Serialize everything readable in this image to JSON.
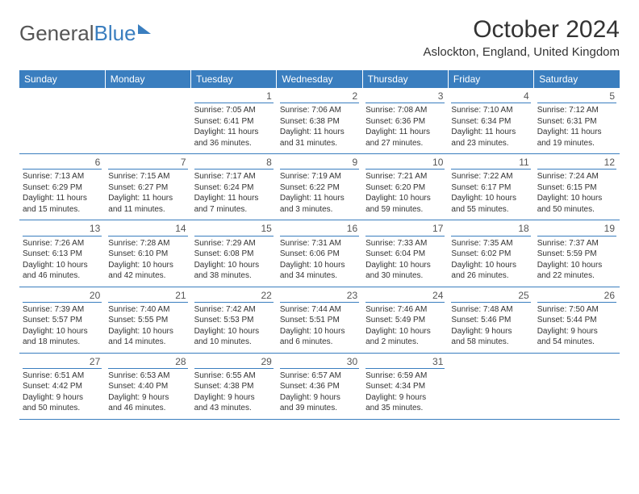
{
  "logo": {
    "part1": "General",
    "part2": "Blue"
  },
  "title": "October 2024",
  "location": "Aslockton, England, United Kingdom",
  "colors": {
    "header_bg": "#3a7ebf",
    "header_text": "#ffffff",
    "border": "#3a7ebf",
    "text": "#333333"
  },
  "day_headers": [
    "Sunday",
    "Monday",
    "Tuesday",
    "Wednesday",
    "Thursday",
    "Friday",
    "Saturday"
  ],
  "weeks": [
    [
      {
        "day": "",
        "lines": []
      },
      {
        "day": "",
        "lines": []
      },
      {
        "day": "1",
        "lines": [
          "Sunrise: 7:05 AM",
          "Sunset: 6:41 PM",
          "Daylight: 11 hours",
          "and 36 minutes."
        ]
      },
      {
        "day": "2",
        "lines": [
          "Sunrise: 7:06 AM",
          "Sunset: 6:38 PM",
          "Daylight: 11 hours",
          "and 31 minutes."
        ]
      },
      {
        "day": "3",
        "lines": [
          "Sunrise: 7:08 AM",
          "Sunset: 6:36 PM",
          "Daylight: 11 hours",
          "and 27 minutes."
        ]
      },
      {
        "day": "4",
        "lines": [
          "Sunrise: 7:10 AM",
          "Sunset: 6:34 PM",
          "Daylight: 11 hours",
          "and 23 minutes."
        ]
      },
      {
        "day": "5",
        "lines": [
          "Sunrise: 7:12 AM",
          "Sunset: 6:31 PM",
          "Daylight: 11 hours",
          "and 19 minutes."
        ]
      }
    ],
    [
      {
        "day": "6",
        "lines": [
          "Sunrise: 7:13 AM",
          "Sunset: 6:29 PM",
          "Daylight: 11 hours",
          "and 15 minutes."
        ]
      },
      {
        "day": "7",
        "lines": [
          "Sunrise: 7:15 AM",
          "Sunset: 6:27 PM",
          "Daylight: 11 hours",
          "and 11 minutes."
        ]
      },
      {
        "day": "8",
        "lines": [
          "Sunrise: 7:17 AM",
          "Sunset: 6:24 PM",
          "Daylight: 11 hours",
          "and 7 minutes."
        ]
      },
      {
        "day": "9",
        "lines": [
          "Sunrise: 7:19 AM",
          "Sunset: 6:22 PM",
          "Daylight: 11 hours",
          "and 3 minutes."
        ]
      },
      {
        "day": "10",
        "lines": [
          "Sunrise: 7:21 AM",
          "Sunset: 6:20 PM",
          "Daylight: 10 hours",
          "and 59 minutes."
        ]
      },
      {
        "day": "11",
        "lines": [
          "Sunrise: 7:22 AM",
          "Sunset: 6:17 PM",
          "Daylight: 10 hours",
          "and 55 minutes."
        ]
      },
      {
        "day": "12",
        "lines": [
          "Sunrise: 7:24 AM",
          "Sunset: 6:15 PM",
          "Daylight: 10 hours",
          "and 50 minutes."
        ]
      }
    ],
    [
      {
        "day": "13",
        "lines": [
          "Sunrise: 7:26 AM",
          "Sunset: 6:13 PM",
          "Daylight: 10 hours",
          "and 46 minutes."
        ]
      },
      {
        "day": "14",
        "lines": [
          "Sunrise: 7:28 AM",
          "Sunset: 6:10 PM",
          "Daylight: 10 hours",
          "and 42 minutes."
        ]
      },
      {
        "day": "15",
        "lines": [
          "Sunrise: 7:29 AM",
          "Sunset: 6:08 PM",
          "Daylight: 10 hours",
          "and 38 minutes."
        ]
      },
      {
        "day": "16",
        "lines": [
          "Sunrise: 7:31 AM",
          "Sunset: 6:06 PM",
          "Daylight: 10 hours",
          "and 34 minutes."
        ]
      },
      {
        "day": "17",
        "lines": [
          "Sunrise: 7:33 AM",
          "Sunset: 6:04 PM",
          "Daylight: 10 hours",
          "and 30 minutes."
        ]
      },
      {
        "day": "18",
        "lines": [
          "Sunrise: 7:35 AM",
          "Sunset: 6:02 PM",
          "Daylight: 10 hours",
          "and 26 minutes."
        ]
      },
      {
        "day": "19",
        "lines": [
          "Sunrise: 7:37 AM",
          "Sunset: 5:59 PM",
          "Daylight: 10 hours",
          "and 22 minutes."
        ]
      }
    ],
    [
      {
        "day": "20",
        "lines": [
          "Sunrise: 7:39 AM",
          "Sunset: 5:57 PM",
          "Daylight: 10 hours",
          "and 18 minutes."
        ]
      },
      {
        "day": "21",
        "lines": [
          "Sunrise: 7:40 AM",
          "Sunset: 5:55 PM",
          "Daylight: 10 hours",
          "and 14 minutes."
        ]
      },
      {
        "day": "22",
        "lines": [
          "Sunrise: 7:42 AM",
          "Sunset: 5:53 PM",
          "Daylight: 10 hours",
          "and 10 minutes."
        ]
      },
      {
        "day": "23",
        "lines": [
          "Sunrise: 7:44 AM",
          "Sunset: 5:51 PM",
          "Daylight: 10 hours",
          "and 6 minutes."
        ]
      },
      {
        "day": "24",
        "lines": [
          "Sunrise: 7:46 AM",
          "Sunset: 5:49 PM",
          "Daylight: 10 hours",
          "and 2 minutes."
        ]
      },
      {
        "day": "25",
        "lines": [
          "Sunrise: 7:48 AM",
          "Sunset: 5:46 PM",
          "Daylight: 9 hours",
          "and 58 minutes."
        ]
      },
      {
        "day": "26",
        "lines": [
          "Sunrise: 7:50 AM",
          "Sunset: 5:44 PM",
          "Daylight: 9 hours",
          "and 54 minutes."
        ]
      }
    ],
    [
      {
        "day": "27",
        "lines": [
          "Sunrise: 6:51 AM",
          "Sunset: 4:42 PM",
          "Daylight: 9 hours",
          "and 50 minutes."
        ]
      },
      {
        "day": "28",
        "lines": [
          "Sunrise: 6:53 AM",
          "Sunset: 4:40 PM",
          "Daylight: 9 hours",
          "and 46 minutes."
        ]
      },
      {
        "day": "29",
        "lines": [
          "Sunrise: 6:55 AM",
          "Sunset: 4:38 PM",
          "Daylight: 9 hours",
          "and 43 minutes."
        ]
      },
      {
        "day": "30",
        "lines": [
          "Sunrise: 6:57 AM",
          "Sunset: 4:36 PM",
          "Daylight: 9 hours",
          "and 39 minutes."
        ]
      },
      {
        "day": "31",
        "lines": [
          "Sunrise: 6:59 AM",
          "Sunset: 4:34 PM",
          "Daylight: 9 hours",
          "and 35 minutes."
        ]
      },
      {
        "day": "",
        "lines": []
      },
      {
        "day": "",
        "lines": []
      }
    ]
  ]
}
